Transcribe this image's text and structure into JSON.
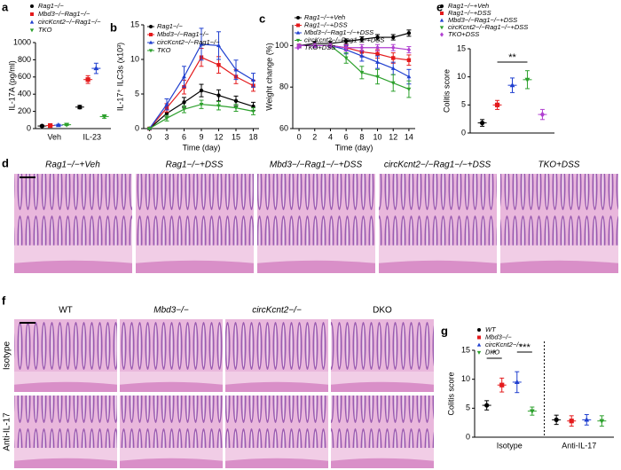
{
  "chart_data": [
    {
      "panel": "a",
      "type": "dot",
      "y_label": "IL-17A (pg/ml)",
      "categories": [
        "Veh",
        "IL-23"
      ],
      "ylim": [
        0,
        1000
      ],
      "yticks": [
        0,
        200,
        400,
        600,
        800,
        1000
      ],
      "series": [
        {
          "name": "Rag1−/−",
          "color": "#000000",
          "marker": "circle",
          "values": [
            30,
            250
          ],
          "errors": [
            8,
            20
          ]
        },
        {
          "name": "Mbd3−/−Rag1−/−",
          "color": "#e41a1c",
          "marker": "square",
          "values": [
            35,
            570
          ],
          "errors": [
            8,
            45
          ]
        },
        {
          "name": "circKcnt2−/−Rag1−/−",
          "color": "#1f3fcf",
          "marker": "triangle",
          "values": [
            40,
            700
          ],
          "errors": [
            10,
            60
          ]
        },
        {
          "name": "TKO",
          "color": "#2ca02c",
          "marker": "triangle-down",
          "values": [
            45,
            140
          ],
          "errors": [
            10,
            20
          ]
        }
      ]
    },
    {
      "panel": "b",
      "type": "line",
      "y_label": "IL-17⁺ ILC3s (x10³)",
      "x_label": "Time (day)",
      "x": [
        0,
        3,
        6,
        9,
        12,
        15,
        18
      ],
      "xlim": [
        -1,
        19
      ],
      "xticks": [
        0,
        3,
        6,
        9,
        12,
        15,
        18
      ],
      "ylim": [
        0,
        15
      ],
      "yticks": [
        0,
        5,
        10,
        15
      ],
      "series": [
        {
          "name": "Rag1−/−",
          "color": "#000000",
          "marker": "circle",
          "values": [
            0,
            2.2,
            3.8,
            5.5,
            4.8,
            4,
            3.2
          ],
          "errors": [
            0.1,
            0.5,
            0.7,
            0.9,
            0.8,
            0.7,
            0.6
          ]
        },
        {
          "name": "Mbd3−/−Rag1−/−",
          "color": "#e41a1c",
          "marker": "square",
          "values": [
            0,
            3,
            6,
            10.3,
            9.2,
            7.5,
            6.2
          ],
          "errors": [
            0.1,
            0.6,
            1,
            1.3,
            1.2,
            1,
            0.8
          ]
        },
        {
          "name": "circKcnt2−/−Rag1−/−",
          "color": "#1f3fcf",
          "marker": "triangle",
          "values": [
            0,
            3.5,
            7.5,
            12.2,
            12,
            8.5,
            7
          ],
          "errors": [
            0.1,
            0.8,
            1.5,
            2.3,
            2,
            1.4,
            1
          ]
        },
        {
          "name": "TKO",
          "color": "#2ca02c",
          "marker": "triangle-down",
          "values": [
            0,
            1.5,
            2.8,
            3.5,
            3.3,
            3,
            2.5
          ],
          "errors": [
            0.1,
            0.4,
            0.5,
            0.6,
            0.6,
            0.5,
            0.5
          ]
        }
      ]
    },
    {
      "panel": "c",
      "type": "line",
      "y_label": "Weight change (%)",
      "x_label": "Time (day)",
      "x": [
        0,
        2,
        4,
        6,
        8,
        10,
        12,
        14
      ],
      "xlim": [
        -0.8,
        14.8
      ],
      "xticks": [
        0,
        2,
        4,
        6,
        8,
        10,
        12,
        14
      ],
      "ylim": [
        60,
        110
      ],
      "yticks": [
        60,
        80,
        100
      ],
      "series": [
        {
          "name": "Rag1−/−+Veh",
          "color": "#000000",
          "marker": "circle",
          "values": [
            100,
            101,
            101,
            102,
            103,
            104,
            104,
            106
          ],
          "errors": [
            0.5,
            1,
            1,
            1.2,
            1.2,
            1.3,
            1.3,
            1.5
          ]
        },
        {
          "name": "Rag1−/−+DSS",
          "color": "#e41a1c",
          "marker": "square",
          "values": [
            100,
            100,
            100,
            99,
            97,
            96,
            94,
            93
          ],
          "errors": [
            0.5,
            1,
            1,
            1.5,
            2,
            2,
            2.5,
            2.5
          ]
        },
        {
          "name": "Mbd3−/−Rag1−/−+DSS",
          "color": "#1f3fcf",
          "marker": "triangle",
          "values": [
            100,
            100,
            100,
            98,
            95,
            92,
            89,
            85
          ],
          "errors": [
            0.5,
            1,
            1,
            2,
            2.5,
            3,
            3,
            3.5
          ]
        },
        {
          "name": "circKcnt2−/−Rag1−/−+DSS",
          "color": "#2ca02c",
          "marker": "triangle-down",
          "values": [
            100,
            100,
            100,
            94,
            87,
            85,
            82,
            79
          ],
          "errors": [
            0.5,
            1,
            1,
            2.5,
            3,
            3.5,
            4,
            4
          ]
        },
        {
          "name": "TKO+DSS",
          "color": "#b03fd0",
          "marker": "diamond",
          "values": [
            100,
            100,
            100,
            99,
            99,
            99,
            99,
            98
          ],
          "errors": [
            0.5,
            1,
            1,
            1.5,
            1.5,
            1.5,
            1.5,
            1.5
          ]
        }
      ]
    },
    {
      "panel": "e",
      "type": "dot",
      "y_label": "Colitis score",
      "categories": [
        null
      ],
      "ylim": [
        0,
        15
      ],
      "yticks": [
        0,
        5,
        10,
        15
      ],
      "annotations": [
        "**"
      ],
      "series": [
        {
          "name": "Rag1−/−+Veh",
          "color": "#000000",
          "marker": "circle",
          "values": [
            1.8
          ],
          "errors": [
            0.6
          ]
        },
        {
          "name": "Rag1−/−+DSS",
          "color": "#e41a1c",
          "marker": "square",
          "values": [
            5
          ],
          "errors": [
            0.8
          ]
        },
        {
          "name": "Mbd3−/−Rag1−/−+DSS",
          "color": "#1f3fcf",
          "marker": "triangle",
          "values": [
            8.5
          ],
          "errors": [
            1.3
          ]
        },
        {
          "name": "circKcnt2−/−Rag1−/−+DSS",
          "color": "#2ca02c",
          "marker": "triangle-down",
          "values": [
            9.5
          ],
          "errors": [
            1.6
          ]
        },
        {
          "name": "TKO+DSS",
          "color": "#b03fd0",
          "marker": "diamond",
          "values": [
            3.3
          ],
          "errors": [
            0.9
          ]
        }
      ]
    },
    {
      "panel": "g",
      "type": "dot",
      "y_label": "Colitis score",
      "categories": [
        "Isotype",
        "Anti-IL-17"
      ],
      "ylim": [
        0,
        15
      ],
      "yticks": [
        0,
        5,
        10,
        15
      ],
      "annotations": [
        "*",
        "***"
      ],
      "series": [
        {
          "name": "WT",
          "color": "#000000",
          "marker": "circle",
          "values": [
            5.5,
            3
          ],
          "errors": [
            0.8,
            0.8
          ]
        },
        {
          "name": "Mbd3−/−",
          "color": "#e41a1c",
          "marker": "square",
          "values": [
            9,
            2.8
          ],
          "errors": [
            1.2,
            0.9
          ]
        },
        {
          "name": "circKcnt2−/−",
          "color": "#1f3fcf",
          "marker": "triangle",
          "values": [
            9.5,
            3
          ],
          "errors": [
            1.8,
            0.9
          ]
        },
        {
          "name": "DKO",
          "color": "#2ca02c",
          "marker": "triangle-down",
          "values": [
            4.5,
            2.8
          ],
          "errors": [
            0.7,
            0.9
          ]
        }
      ]
    }
  ],
  "histology": {
    "d": {
      "panel": "d",
      "labels": [
        "Rag1−/−+Veh",
        "Rag1−/−+DSS",
        "Mbd3−/−Rag1−/−+DSS",
        "circKcnt2−/−Rag1−/−+DSS",
        "TKO+DSS"
      ]
    },
    "f": {
      "panel": "f",
      "columns": [
        "WT",
        "Mbd3−/−",
        "circKcnt2−/−",
        "DKO"
      ],
      "rows": [
        "Isotype",
        "Anti-IL-17"
      ]
    }
  }
}
